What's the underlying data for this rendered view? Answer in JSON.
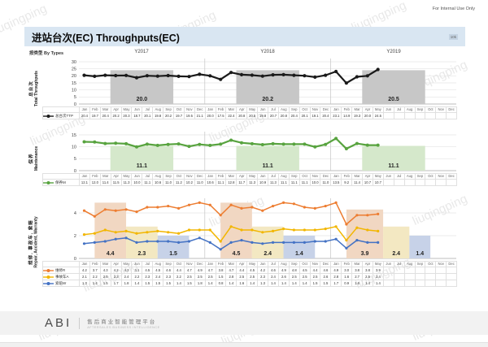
{
  "page": {
    "confidential": "For Internal Use Only",
    "title": "进站台次(EC) Throughputs(EC)",
    "unit_note": "10k",
    "by_types": "按类型 By Types",
    "page_number": "8",
    "watermark": "liuqingping",
    "footer": {
      "logo": "ABI",
      "name_cn": "售后商业智能管理平台",
      "name_en": "AFTERSALES BUSINESS INTELLIGENCE"
    }
  },
  "years": [
    "Y2017",
    "Y2018",
    "Y2019"
  ],
  "months": [
    "Jan",
    "Feb",
    "Mar",
    "Apr",
    "May",
    "Jun",
    "Jul",
    "Aug",
    "Sep",
    "Oct",
    "Nov",
    "Dec"
  ],
  "chart_data": [
    {
      "type": "line",
      "name": "total-throughputs",
      "side_label_cn": "总台次",
      "side_label_en": "Total Throughputs",
      "ylim": [
        0,
        30
      ],
      "yticks": [
        0,
        5,
        10,
        15,
        20,
        25,
        30
      ],
      "grid": true,
      "legend_position": "table-left",
      "series": [
        {
          "name": "总台次TTP",
          "color": "#1a1a1a",
          "values": [
            20.4,
            19.7,
            20.4,
            20.2,
            20.3,
            18.7,
            20.1,
            19.8,
            20.2,
            19.7,
            19.5,
            21.1,
            20.0,
            17.5,
            22.4,
            20.8,
            20.5,
            19.8,
            20.7,
            20.8,
            20.4,
            20.1,
            19.1,
            20.4,
            23.1,
            14.9,
            19.3,
            20.0,
            24.5,
            null,
            null,
            null,
            null,
            null,
            null,
            null
          ]
        }
      ],
      "bands": [
        {
          "from": 3,
          "to": 9,
          "top": 24,
          "label": "20.0",
          "color": "#c7c7c7"
        },
        {
          "from": 15,
          "to": 21,
          "top": 24,
          "label": "20.2",
          "color": "#c7c7c7"
        },
        {
          "from": 27,
          "to": 33,
          "top": 24,
          "label": "20.5",
          "color": "#c7c7c7"
        }
      ]
    },
    {
      "type": "line",
      "name": "maintenance",
      "side_label_cn": "保养",
      "side_label_en": "Maintenance",
      "ylim": [
        0,
        15
      ],
      "yticks": [
        0,
        5,
        10,
        15
      ],
      "grid": true,
      "legend_position": "table-left",
      "series": [
        {
          "name": "保养M",
          "color": "#58a33f",
          "values": [
            12.1,
            12.0,
            11.4,
            11.5,
            11.3,
            10.0,
            11.1,
            10.6,
            11.0,
            11.2,
            10.2,
            11.0,
            10.6,
            11.1,
            12.8,
            11.7,
            11.3,
            10.9,
            11.3,
            11.1,
            11.1,
            11.1,
            10.0,
            11.0,
            13.5,
            9.2,
            11.4,
            10.7,
            10.7,
            null,
            null,
            null,
            null,
            null,
            null,
            null
          ]
        }
      ],
      "bands": [
        {
          "from": 3,
          "to": 9,
          "top": 10.4,
          "label": "11.1",
          "color": "#d5e8cb"
        },
        {
          "from": 15,
          "to": 21,
          "top": 10.4,
          "label": "11.1",
          "color": "#d5e8cb"
        },
        {
          "from": 27,
          "to": 33,
          "top": 10.4,
          "label": "11.1",
          "color": "#d5e8cb"
        }
      ]
    },
    {
      "type": "line",
      "name": "repair-accident-warranty",
      "side_label_cn": "维修, 事故车, 索赔",
      "side_label_en": "Repair, Accident, Warranty",
      "ylim": [
        0,
        5
      ],
      "yticks": [
        0,
        2,
        4
      ],
      "grid": true,
      "legend_position": "table-left",
      "series": [
        {
          "name": "维修R",
          "color": "#ed7d31",
          "values": [
            4.2,
            3.7,
            4.3,
            4.2,
            4.3,
            4.1,
            4.5,
            4.5,
            4.6,
            4.4,
            4.7,
            4.9,
            4.7,
            3.8,
            4.7,
            4.4,
            4.5,
            4.2,
            4.6,
            4.9,
            4.8,
            4.5,
            4.4,
            4.6,
            4.9,
            3.0,
            3.8,
            3.8,
            3.9,
            null,
            null,
            null,
            null,
            null,
            null,
            null
          ]
        },
        {
          "name": "事故车A",
          "color": "#f2b600",
          "values": [
            2.1,
            2.2,
            2.5,
            2.3,
            2.4,
            2.2,
            2.3,
            2.4,
            2.3,
            2.2,
            2.5,
            2.5,
            2.5,
            1.5,
            2.8,
            2.5,
            2.5,
            2.3,
            2.4,
            2.6,
            2.5,
            2.5,
            2.5,
            2.6,
            2.8,
            1.6,
            2.7,
            2.5,
            2.4,
            null,
            null,
            null,
            null,
            null,
            null,
            null
          ]
        },
        {
          "name": "索赔W",
          "color": "#4472c4",
          "values": [
            1.3,
            1.4,
            1.5,
            1.7,
            1.8,
            1.4,
            1.5,
            1.5,
            1.5,
            1.4,
            1.5,
            1.8,
            1.4,
            0.8,
            1.4,
            1.6,
            1.4,
            1.3,
            1.4,
            1.4,
            1.4,
            1.4,
            1.5,
            1.5,
            1.7,
            0.9,
            1.6,
            1.4,
            1.4,
            null,
            null,
            null,
            null,
            null,
            null,
            null
          ]
        }
      ],
      "bands": [
        {
          "from": 1.5,
          "to": 4.5,
          "top": 4.9,
          "label": "4.4",
          "color": "#f1d7c2"
        },
        {
          "from": 4.5,
          "to": 7.5,
          "top": 2.8,
          "label": "2.3",
          "color": "#f3e8c2"
        },
        {
          "from": 7.5,
          "to": 10.5,
          "top": 2.0,
          "label": "1.5",
          "color": "#c7d2e8"
        },
        {
          "from": 13.5,
          "to": 16.5,
          "top": 4.9,
          "label": "4.5",
          "color": "#f1d7c2"
        },
        {
          "from": 16.5,
          "to": 19.5,
          "top": 2.8,
          "label": "2.4",
          "color": "#f3e8c2"
        },
        {
          "from": 19.5,
          "to": 22.5,
          "top": 2.0,
          "label": "1.4",
          "color": "#c7d2e8"
        },
        {
          "from": 25.5,
          "to": 29,
          "top": 4.3,
          "label": "3.9",
          "color": "#f1d7c2"
        },
        {
          "from": 29,
          "to": 31.5,
          "top": 2.8,
          "label": "2.4",
          "color": "#f3e8c2"
        },
        {
          "from": 31.5,
          "to": 33.5,
          "top": 2.0,
          "label": "1.4",
          "color": "#c7d2e8"
        }
      ]
    }
  ]
}
